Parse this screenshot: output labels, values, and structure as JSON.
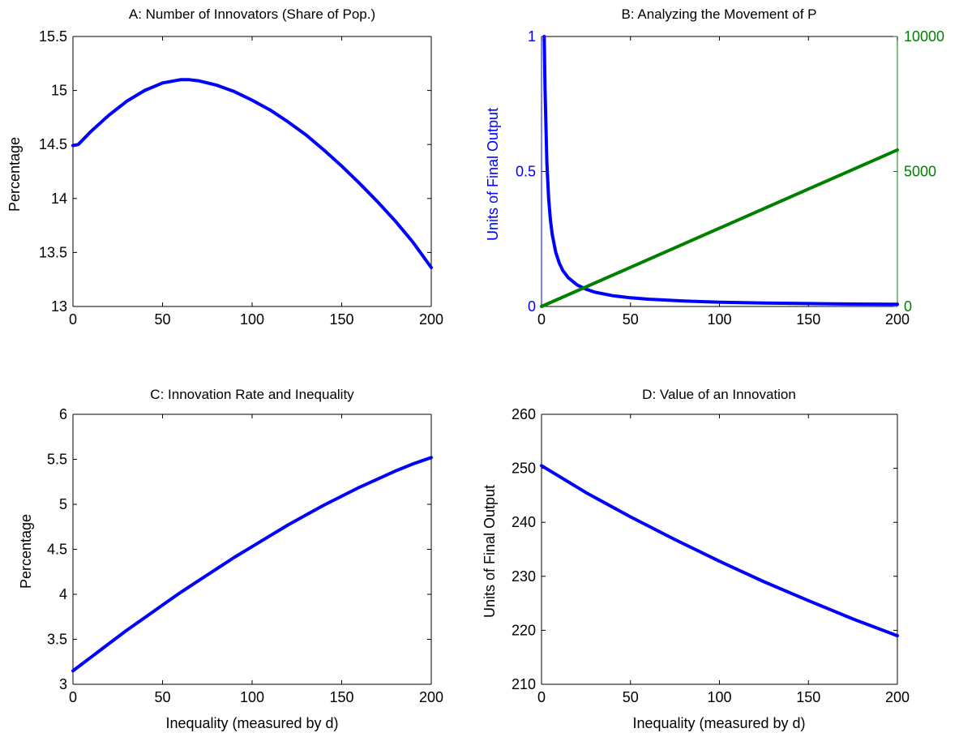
{
  "chart_data": [
    {
      "type": "line",
      "title": "A: Number of Innovators (Share of Pop.)",
      "xlabel": "",
      "ylabel": "Percentage",
      "xlim": [
        0,
        200
      ],
      "ylim": [
        13,
        15.5
      ],
      "xticks": [
        0,
        50,
        100,
        150,
        200
      ],
      "yticks": [
        13,
        13.5,
        14,
        14.5,
        15,
        15.5
      ],
      "series": [
        {
          "color": "#0000ff",
          "x": [
            0,
            3,
            10,
            20,
            30,
            40,
            50,
            60,
            65,
            70,
            80,
            90,
            100,
            110,
            120,
            130,
            140,
            150,
            160,
            170,
            180,
            190,
            200
          ],
          "y": [
            14.49,
            14.5,
            14.62,
            14.77,
            14.9,
            15.0,
            15.07,
            15.1,
            15.1,
            15.09,
            15.05,
            14.99,
            14.91,
            14.82,
            14.71,
            14.59,
            14.45,
            14.3,
            14.14,
            13.97,
            13.79,
            13.59,
            13.36
          ]
        }
      ]
    },
    {
      "type": "line",
      "title": "B: Analyzing the Movement of P",
      "xlabel": "",
      "ylabel": "Units of Final Output",
      "xlim": [
        0,
        200
      ],
      "ylim": [
        0,
        1
      ],
      "y2lim": [
        0,
        10000
      ],
      "xticks": [
        0,
        50,
        100,
        150,
        200
      ],
      "yticks": [
        0,
        0.5,
        1
      ],
      "y2ticks": [
        0,
        5000,
        10000
      ],
      "left_axis_color": "#0000ff",
      "right_axis_color": "#008000",
      "series": [
        {
          "axis": "left",
          "color": "#0000ff",
          "x": [
            1.5,
            2,
            3,
            4,
            5,
            6,
            8,
            10,
            12,
            15,
            20,
            25,
            30,
            40,
            50,
            60,
            80,
            100,
            125,
            150,
            175,
            200
          ],
          "y": [
            1.0,
            0.8,
            0.533,
            0.4,
            0.32,
            0.267,
            0.2,
            0.16,
            0.133,
            0.107,
            0.08,
            0.064,
            0.053,
            0.04,
            0.032,
            0.027,
            0.02,
            0.016,
            0.0128,
            0.0107,
            0.0091,
            0.008
          ]
        },
        {
          "axis": "right",
          "color": "#008000",
          "x": [
            0,
            200
          ],
          "y": [
            0,
            5800
          ]
        }
      ]
    },
    {
      "type": "line",
      "title": "C: Innovation Rate and Inequality",
      "xlabel": "Inequality (measured by d)",
      "ylabel": "Percentage",
      "xlim": [
        0,
        200
      ],
      "ylim": [
        3,
        6
      ],
      "xticks": [
        0,
        50,
        100,
        150,
        200
      ],
      "yticks": [
        3,
        3.5,
        4,
        4.5,
        5,
        5.5,
        6
      ],
      "series": [
        {
          "color": "#0000ff",
          "x": [
            0,
            10,
            20,
            30,
            40,
            50,
            60,
            70,
            80,
            90,
            100,
            110,
            120,
            130,
            140,
            150,
            160,
            170,
            180,
            190,
            200
          ],
          "y": [
            3.15,
            3.3,
            3.45,
            3.6,
            3.74,
            3.88,
            4.02,
            4.15,
            4.28,
            4.41,
            4.53,
            4.65,
            4.77,
            4.88,
            4.99,
            5.09,
            5.19,
            5.28,
            5.37,
            5.45,
            5.52
          ]
        }
      ]
    },
    {
      "type": "line",
      "title": "D: Value of an Innovation",
      "xlabel": "Inequality (measured by d)",
      "ylabel": "Units of Final Output",
      "xlim": [
        0,
        200
      ],
      "ylim": [
        210,
        260
      ],
      "xticks": [
        0,
        50,
        100,
        150,
        200
      ],
      "yticks": [
        210,
        220,
        230,
        240,
        250,
        260
      ],
      "series": [
        {
          "color": "#0000ff",
          "x": [
            0,
            25,
            50,
            75,
            100,
            125,
            150,
            175,
            200
          ],
          "y": [
            250.5,
            245.5,
            241.0,
            236.8,
            232.8,
            229.0,
            225.5,
            222.1,
            219.0
          ]
        }
      ]
    }
  ]
}
